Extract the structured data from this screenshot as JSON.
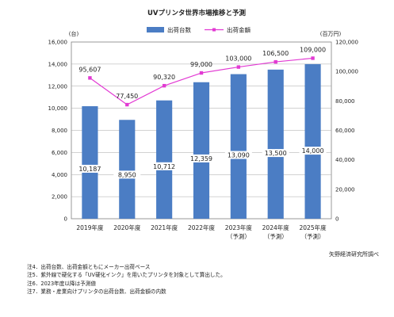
{
  "chart_data": {
    "type": "bar",
    "title": "UVプリンタ世界市場推移と予測",
    "categories": [
      "2019年度",
      "2020年度",
      "2021年度",
      "2022年度",
      "2023年度",
      "2024年度",
      "2025年度"
    ],
    "category_sublabels": [
      "",
      "",
      "",
      "",
      "（予測）",
      "（予測）",
      "（予測）"
    ],
    "series": [
      {
        "name": "出荷台数",
        "type": "bar",
        "axis": "left",
        "color": "#4b7dc4",
        "values": [
          10187,
          8950,
          10712,
          12359,
          13090,
          13500,
          14000
        ],
        "labels": [
          "10,187",
          "8,950",
          "10,712",
          "12,359",
          "13,090",
          "13,500",
          "14,000"
        ]
      },
      {
        "name": "出荷金額",
        "type": "line",
        "axis": "right",
        "color": "#e23ad3",
        "values": [
          95607,
          77450,
          90320,
          99000,
          103000,
          106500,
          109000
        ],
        "labels": [
          "95,607",
          "77,450",
          "90,320",
          "99,000",
          "103,000",
          "106,500",
          "109,000"
        ]
      }
    ],
    "y_left": {
      "unit": "(台)",
      "min": 0,
      "max": 16000,
      "step": 2000,
      "ticks": [
        "0",
        "2,000",
        "4,000",
        "6,000",
        "8,000",
        "10,000",
        "12,000",
        "14,000",
        "16,000"
      ]
    },
    "y_right": {
      "unit": "(百万円)",
      "min": 0,
      "max": 120000,
      "step": 20000,
      "ticks": [
        "0",
        "20,000",
        "40,000",
        "60,000",
        "80,000",
        "100,000",
        "120,000"
      ]
    },
    "grid": true,
    "legend": "top-center",
    "source": "矢野経済研究所調べ"
  },
  "notes": [
    "注4．出荷台数、出荷金額ともにメーカー出荷ベース",
    "注5．紫外線で硬化する「UV硬化インク」を用いたプリンタを対象として算出した。",
    "注6．2023年度以降は予測値",
    "注7．業務・産業向けプリンタの出荷台数、出荷金額の内数"
  ]
}
